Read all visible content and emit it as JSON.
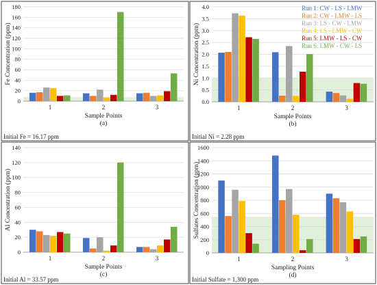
{
  "chart_data": [
    {
      "type": "bar",
      "id": "a",
      "panel_label": "(a)",
      "ylabel": "Fe Concentration (ppm)",
      "xlabel": "Sample Points",
      "categories": [
        "1",
        "2",
        "3"
      ],
      "ylim": [
        0,
        180
      ],
      "yticks": [
        0,
        20,
        40,
        60,
        80,
        100,
        120,
        140,
        160,
        180
      ],
      "tick_decimals": 0,
      "footnote": "Initial Fe = 16.17 ppm",
      "band": [
        0,
        8
      ],
      "series": [
        {
          "values": [
            16,
            15,
            15
          ]
        },
        {
          "values": [
            17,
            10,
            16
          ]
        },
        {
          "values": [
            26,
            22,
            10
          ]
        },
        {
          "values": [
            25,
            7,
            11
          ]
        },
        {
          "values": [
            10,
            12,
            19
          ]
        },
        {
          "values": [
            11,
            170,
            53
          ]
        }
      ]
    },
    {
      "type": "bar",
      "id": "b",
      "panel_label": "(b)",
      "ylabel": "Ni Concentration (ppm)",
      "xlabel": "Sample Points",
      "categories": [
        "1",
        "2",
        "3"
      ],
      "ylim": [
        0,
        4
      ],
      "yticks": [
        0,
        0.5,
        1,
        1.5,
        2,
        2.5,
        3,
        3.5,
        4
      ],
      "tick_decimals": 1,
      "footnote": "Initial Ni = 2.28 ppm",
      "band": [
        0,
        1
      ],
      "series": [
        {
          "name": "Run 1: CW - LS - LMW",
          "values": [
            2.07,
            2.09,
            0.43
          ]
        },
        {
          "name": "Run 2: CW - LMW - LS",
          "values": [
            2.1,
            0.26,
            0.37
          ]
        },
        {
          "name": "Run 3: LS - CW - LMW",
          "values": [
            3.73,
            2.35,
            0.27
          ]
        },
        {
          "name": "Run 4: LS - LMW - CW",
          "values": [
            3.63,
            0.25,
            0.13
          ]
        },
        {
          "name": "Run 5: LMW - LS - CW",
          "values": [
            2.72,
            1.27,
            0.79
          ]
        },
        {
          "name": "Run 6: LMW - CW - LS",
          "values": [
            2.65,
            2.01,
            0.76
          ]
        }
      ]
    },
    {
      "type": "bar",
      "id": "c",
      "panel_label": "(c)",
      "ylabel": "Al Concentration (ppm)",
      "xlabel": "Sample Points",
      "categories": [
        "1",
        "2",
        "3"
      ],
      "ylim": [
        0,
        140
      ],
      "yticks": [
        0,
        20,
        40,
        60,
        80,
        100,
        120,
        140
      ],
      "tick_decimals": 0,
      "footnote": "Initial Al = 33.57 ppm",
      "band": null,
      "series": [
        {
          "values": [
            30,
            19,
            7
          ]
        },
        {
          "values": [
            28,
            5,
            7
          ]
        },
        {
          "values": [
            23,
            20,
            4
          ]
        },
        {
          "values": [
            22,
            2,
            9
          ]
        },
        {
          "values": [
            27,
            9,
            17
          ]
        },
        {
          "values": [
            25,
            120,
            34
          ]
        }
      ]
    },
    {
      "type": "bar",
      "id": "d",
      "panel_label": "(d)",
      "ylabel": "Sulfates Concentration (ppm)",
      "xlabel": "Sampling Points",
      "categories": [
        "1",
        "2",
        "3"
      ],
      "ylim": [
        0,
        1600
      ],
      "yticks": [
        0,
        200,
        400,
        600,
        800,
        1000,
        1200,
        1400,
        1600
      ],
      "tick_decimals": 0,
      "footnote": "Initial Sulfate = 1,300 ppm",
      "band": [
        0,
        550
      ],
      "series": [
        {
          "values": [
            1100,
            1480,
            900
          ]
        },
        {
          "values": [
            560,
            800,
            830
          ]
        },
        {
          "values": [
            960,
            970,
            770
          ]
        },
        {
          "values": [
            790,
            580,
            630
          ]
        },
        {
          "values": [
            300,
            40,
            210
          ]
        },
        {
          "values": [
            140,
            210,
            250
          ]
        }
      ]
    }
  ],
  "colors": {
    "series": [
      "#4472C4",
      "#ED7D31",
      "#A5A5A5",
      "#FFC000",
      "#C00000",
      "#70AD47"
    ],
    "band": "#E2EFDA",
    "gridline": "#d9d9d9",
    "axis": "#8c8c8c",
    "panel_border": "#444444"
  }
}
